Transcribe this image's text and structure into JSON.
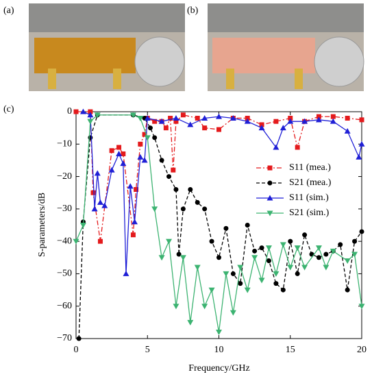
{
  "panel_labels": [
    "(a)",
    "(b)",
    "(c)"
  ],
  "chart_data": {
    "type": "line",
    "xlabel": "Frequency/GHz",
    "ylabel": "S-parameters/dB",
    "xlim": [
      0,
      20
    ],
    "xticks": [
      0,
      5,
      10,
      15,
      20
    ],
    "ylim": [
      -70,
      0
    ],
    "yticks": [
      0,
      {
        "value": -10,
        "label": "−10"
      },
      {
        "value": -20,
        "label": "−20"
      },
      {
        "value": -30,
        "label": "−30"
      },
      {
        "value": -40,
        "label": "−40"
      },
      {
        "value": -50,
        "label": "−50"
      },
      {
        "value": -60,
        "label": "−60"
      },
      {
        "value": -70,
        "label": "−70"
      }
    ],
    "series": [
      {
        "name": "S11 (mea.)",
        "color": "#e41a1c",
        "dash": "7,3,2,3",
        "marker": "square",
        "x": [
          0,
          1,
          1.2,
          1.7,
          2.5,
          3,
          3.3,
          4,
          4.2,
          4.5,
          4.8,
          5,
          5.5,
          6,
          6.3,
          6.6,
          6.8,
          7,
          7.5,
          8.5,
          9,
          10,
          11,
          12,
          13,
          14,
          15,
          15.5,
          16,
          17,
          18,
          19,
          20
        ],
        "values": [
          0,
          0,
          -25,
          -40,
          -12,
          -11,
          -13,
          -38,
          -24,
          -10,
          -7,
          -2,
          -3,
          -3,
          -5,
          -2,
          -18,
          -3,
          -1,
          -2,
          -5,
          -5.5,
          -2,
          -2,
          -4,
          -3,
          -2,
          -11,
          -3,
          -1.5,
          -1.5,
          -2,
          -2.5
        ]
      },
      {
        "name": "S21 (mea.)",
        "color": "#000000",
        "dash": "5,3",
        "marker": "circle",
        "x": [
          0.2,
          0.5,
          1,
          1.5,
          4,
          4.8,
          5.2,
          5.5,
          6,
          6.5,
          7,
          7.2,
          7.5,
          8,
          8.5,
          9,
          9.5,
          10,
          10.5,
          11,
          11.5,
          12,
          12.5,
          13,
          13.5,
          14,
          14.5,
          15,
          15.5,
          16,
          16.5,
          17,
          17.5,
          18,
          18.5,
          19,
          19.5,
          20
        ],
        "values": [
          -70,
          -34,
          -8,
          -1,
          -1,
          -2,
          -5,
          -8,
          -15,
          -20,
          -24,
          -44,
          -30,
          -24,
          -28,
          -30,
          -40,
          -45,
          -36,
          -50,
          -53,
          -35,
          -43,
          -42,
          -46,
          -53,
          -55,
          -40,
          -50,
          -38,
          -44,
          -45,
          -44,
          -43,
          -41,
          -55,
          -40,
          -37
        ]
      },
      {
        "name": "S11 (sim.)",
        "color": "#1f1fd6",
        "dash": "none",
        "marker": "up",
        "x": [
          0.5,
          1,
          1.3,
          1.5,
          1.7,
          2,
          2.5,
          3,
          3.3,
          3.5,
          3.8,
          4.1,
          4.5,
          4.8,
          5,
          6,
          7,
          8,
          9,
          10,
          11,
          12,
          13,
          14,
          14.5,
          15,
          16,
          17,
          18,
          19,
          19.8,
          20
        ],
        "values": [
          0,
          -1,
          -30,
          -19,
          -28,
          -29,
          -18,
          -13,
          -16,
          -50,
          -23,
          -34,
          -14,
          -15,
          -2,
          -3,
          -2,
          -4,
          -2,
          -1.5,
          -2,
          -3,
          -5,
          -11,
          -5,
          -3,
          -3,
          -2.5,
          -3,
          -6,
          -14,
          -10
        ]
      },
      {
        "name": "S21 (sim.)",
        "color": "#3cb371",
        "dash": "none",
        "marker": "down",
        "x": [
          0,
          0.5,
          1,
          1.5,
          4,
          4.5,
          5,
          5.5,
          6,
          6.5,
          7,
          7.5,
          8,
          8.5,
          9,
          9.5,
          10,
          10.5,
          11,
          11.5,
          12,
          12.5,
          13,
          13.5,
          14,
          14.5,
          15,
          15.5,
          16,
          17,
          17.5,
          18,
          19,
          19.5,
          20
        ],
        "values": [
          -40,
          -35,
          -3,
          -1,
          -1,
          -2,
          -8,
          -30,
          -45,
          -40,
          -60,
          -45,
          -65,
          -48,
          -60,
          -55,
          -68,
          -50,
          -62,
          -48,
          -55,
          -45,
          -52,
          -42,
          -50,
          -41,
          -48,
          -42,
          -48,
          -42,
          -48,
          -43,
          -46,
          -44,
          -60
        ]
      }
    ]
  }
}
